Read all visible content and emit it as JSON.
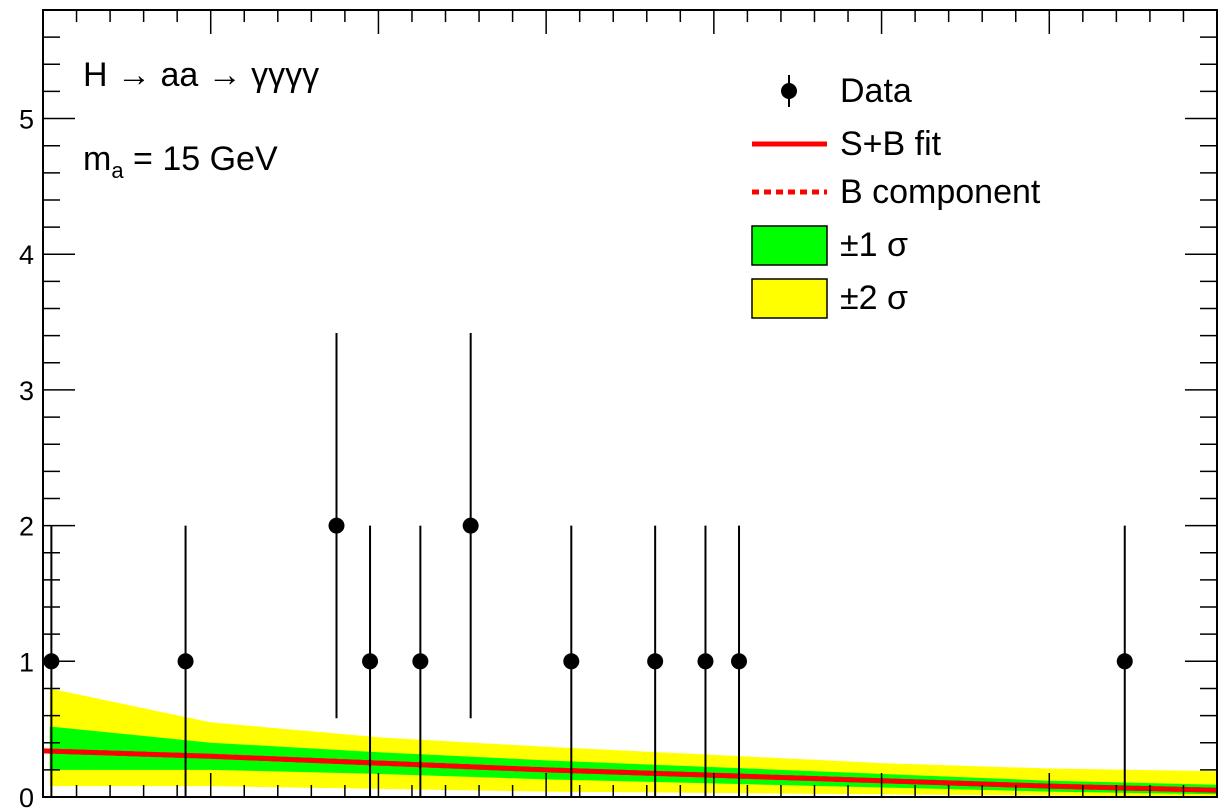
{
  "chart_data": {
    "type": "scatter",
    "title": "",
    "xlabel": "",
    "ylabel": "",
    "xlim": [
      0,
      35
    ],
    "ylim": [
      0,
      5.8
    ],
    "yticks": [
      0,
      1,
      2,
      3,
      4,
      5
    ],
    "y_tick_labels": [
      "0",
      "1",
      "2",
      "3",
      "4",
      "5"
    ],
    "grid": false,
    "legend_position": "top-right",
    "annotations": {
      "process": "H → aa → γγγγ",
      "mass_prefix": "m",
      "mass_sub": "a",
      "mass_suffix": " = 15 GeV"
    },
    "legend": [
      {
        "label": "Data",
        "kind": "marker",
        "color": "#000000"
      },
      {
        "label": "S+B fit",
        "kind": "line",
        "color": "#ff0000"
      },
      {
        "label": "B component",
        "kind": "dashed",
        "color": "#ff0000"
      },
      {
        "label": "±1 σ",
        "kind": "box",
        "color": "#00ff00"
      },
      {
        "label": "±2 σ",
        "kind": "box",
        "color": "#ffff00"
      }
    ],
    "series": [
      {
        "name": "Data",
        "x": [
          0.25,
          4.25,
          8.75,
          9.75,
          11.25,
          12.75,
          15.75,
          18.25,
          19.75,
          20.75,
          32.25
        ],
        "y": [
          1,
          1,
          2,
          1,
          1,
          2,
          1,
          1,
          1,
          1,
          1
        ],
        "err_low": [
          1,
          1,
          1.42,
          1,
          1,
          1.42,
          1,
          1,
          1,
          1,
          1
        ],
        "err_high": [
          1,
          1,
          1.42,
          1,
          1,
          1.42,
          1,
          1,
          1,
          1,
          1
        ],
        "color": "#000000"
      },
      {
        "name": "S+B fit",
        "x": [
          0,
          5,
          10,
          15,
          20,
          25,
          30,
          35
        ],
        "y": [
          0.34,
          0.3,
          0.25,
          0.2,
          0.16,
          0.12,
          0.08,
          0.05
        ],
        "color": "#ff0000"
      },
      {
        "name": "B component",
        "x": [
          0,
          5,
          10,
          15,
          20,
          25,
          30,
          35
        ],
        "y": [
          0.34,
          0.3,
          0.25,
          0.2,
          0.16,
          0.12,
          0.08,
          0.05
        ],
        "color": "#ff0000"
      },
      {
        "name": "±1 σ",
        "x": [
          0.2,
          5,
          10,
          15,
          20,
          25,
          30,
          35
        ],
        "low": [
          0.2,
          0.2,
          0.17,
          0.13,
          0.1,
          0.07,
          0.04,
          0.02
        ],
        "high": [
          0.52,
          0.4,
          0.33,
          0.27,
          0.22,
          0.17,
          0.12,
          0.09
        ],
        "color": "#00ff00"
      },
      {
        "name": "±2 σ",
        "x": [
          0.2,
          5,
          10,
          15,
          20,
          25,
          30,
          35
        ],
        "low": [
          0.08,
          0.08,
          0.06,
          0.04,
          0.03,
          0.02,
          0.01,
          0.0
        ],
        "high": [
          0.8,
          0.55,
          0.44,
          0.37,
          0.31,
          0.25,
          0.21,
          0.19
        ],
        "color": "#ffff00"
      }
    ]
  }
}
